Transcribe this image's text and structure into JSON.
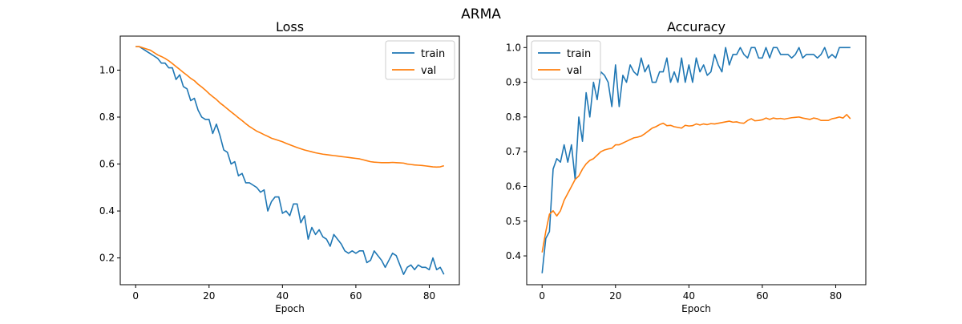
{
  "figure": {
    "suptitle": "ARMA"
  },
  "colors": {
    "train": "#1f77b4",
    "val": "#ff7f0e"
  },
  "chart_data": [
    {
      "type": "line",
      "title": "Loss",
      "xlabel": "Epoch",
      "ylabel": "",
      "xlim": [
        -4.2,
        88.2
      ],
      "ylim": [
        0.086,
        1.145
      ],
      "xticks": [
        0,
        20,
        40,
        60,
        80
      ],
      "yticks": [
        0.2,
        0.4,
        0.6,
        0.8,
        1.0
      ],
      "legend": "top-right",
      "grid": false,
      "series": [
        {
          "name": "train",
          "values": [
            1.1,
            1.1,
            1.09,
            1.08,
            1.07,
            1.06,
            1.05,
            1.03,
            1.03,
            1.01,
            1.01,
            0.96,
            0.98,
            0.93,
            0.92,
            0.87,
            0.88,
            0.83,
            0.8,
            0.79,
            0.79,
            0.73,
            0.77,
            0.72,
            0.66,
            0.65,
            0.6,
            0.61,
            0.55,
            0.56,
            0.52,
            0.52,
            0.51,
            0.5,
            0.48,
            0.49,
            0.4,
            0.44,
            0.46,
            0.46,
            0.39,
            0.4,
            0.38,
            0.43,
            0.43,
            0.35,
            0.38,
            0.28,
            0.33,
            0.3,
            0.32,
            0.29,
            0.28,
            0.25,
            0.3,
            0.28,
            0.26,
            0.23,
            0.22,
            0.23,
            0.22,
            0.23,
            0.23,
            0.18,
            0.19,
            0.23,
            0.21,
            0.19,
            0.16,
            0.19,
            0.22,
            0.21,
            0.17,
            0.13,
            0.16,
            0.17,
            0.15,
            0.17,
            0.16,
            0.16,
            0.15,
            0.2,
            0.15,
            0.16,
            0.13
          ]
        },
        {
          "name": "val",
          "values": [
            1.1,
            1.1,
            1.095,
            1.09,
            1.085,
            1.075,
            1.065,
            1.058,
            1.05,
            1.04,
            1.028,
            1.015,
            1.003,
            0.99,
            0.978,
            0.965,
            0.955,
            0.94,
            0.928,
            0.915,
            0.9,
            0.887,
            0.875,
            0.86,
            0.848,
            0.835,
            0.822,
            0.81,
            0.797,
            0.785,
            0.772,
            0.76,
            0.75,
            0.74,
            0.733,
            0.725,
            0.718,
            0.71,
            0.705,
            0.7,
            0.695,
            0.688,
            0.682,
            0.676,
            0.67,
            0.665,
            0.66,
            0.656,
            0.652,
            0.648,
            0.645,
            0.642,
            0.64,
            0.638,
            0.636,
            0.634,
            0.632,
            0.63,
            0.628,
            0.626,
            0.624,
            0.622,
            0.618,
            0.614,
            0.61,
            0.608,
            0.607,
            0.606,
            0.606,
            0.606,
            0.607,
            0.606,
            0.605,
            0.604,
            0.6,
            0.598,
            0.596,
            0.595,
            0.594,
            0.592,
            0.59,
            0.588,
            0.587,
            0.588,
            0.593
          ]
        }
      ]
    },
    {
      "type": "line",
      "title": "Accuracy",
      "xlabel": "Epoch",
      "ylabel": "",
      "xlim": [
        -4.2,
        88.2
      ],
      "ylim": [
        0.317,
        1.033
      ],
      "xticks": [
        0,
        20,
        40,
        60,
        80
      ],
      "yticks": [
        0.4,
        0.5,
        0.6,
        0.7,
        0.8,
        0.9,
        1.0
      ],
      "legend": "top-left",
      "grid": false,
      "series": [
        {
          "name": "train",
          "values": [
            0.35,
            0.45,
            0.47,
            0.65,
            0.68,
            0.67,
            0.72,
            0.67,
            0.72,
            0.62,
            0.8,
            0.73,
            0.87,
            0.8,
            0.9,
            0.85,
            0.93,
            0.92,
            0.9,
            0.83,
            0.95,
            0.83,
            0.92,
            0.9,
            0.95,
            0.93,
            0.92,
            0.97,
            0.93,
            0.95,
            0.9,
            0.9,
            0.93,
            0.93,
            0.97,
            0.9,
            0.93,
            0.9,
            0.97,
            0.9,
            0.95,
            0.9,
            0.97,
            0.93,
            0.95,
            0.92,
            0.93,
            0.98,
            0.95,
            0.93,
            1.0,
            0.95,
            0.98,
            0.98,
            1.0,
            0.98,
            0.97,
            1.0,
            1.0,
            0.97,
            0.97,
            1.0,
            0.97,
            1.0,
            1.0,
            0.98,
            0.98,
            0.98,
            0.97,
            0.98,
            1.0,
            0.97,
            0.98,
            0.98,
            0.98,
            0.97,
            0.98,
            1.0,
            0.97,
            0.98,
            0.97,
            1.0,
            1.0,
            1.0,
            1.0
          ]
        },
        {
          "name": "val",
          "values": [
            0.41,
            0.47,
            0.52,
            0.53,
            0.515,
            0.53,
            0.56,
            0.58,
            0.6,
            0.62,
            0.63,
            0.65,
            0.665,
            0.675,
            0.68,
            0.69,
            0.7,
            0.705,
            0.708,
            0.71,
            0.72,
            0.72,
            0.725,
            0.73,
            0.735,
            0.74,
            0.742,
            0.745,
            0.752,
            0.76,
            0.768,
            0.772,
            0.778,
            0.782,
            0.775,
            0.776,
            0.772,
            0.77,
            0.768,
            0.776,
            0.774,
            0.775,
            0.78,
            0.777,
            0.78,
            0.778,
            0.781,
            0.78,
            0.782,
            0.784,
            0.786,
            0.788,
            0.785,
            0.786,
            0.783,
            0.782,
            0.79,
            0.795,
            0.789,
            0.79,
            0.792,
            0.797,
            0.793,
            0.797,
            0.795,
            0.796,
            0.794,
            0.796,
            0.798,
            0.799,
            0.8,
            0.797,
            0.795,
            0.793,
            0.797,
            0.795,
            0.79,
            0.79,
            0.79,
            0.795,
            0.797,
            0.8,
            0.797,
            0.807,
            0.795
          ]
        }
      ]
    }
  ]
}
